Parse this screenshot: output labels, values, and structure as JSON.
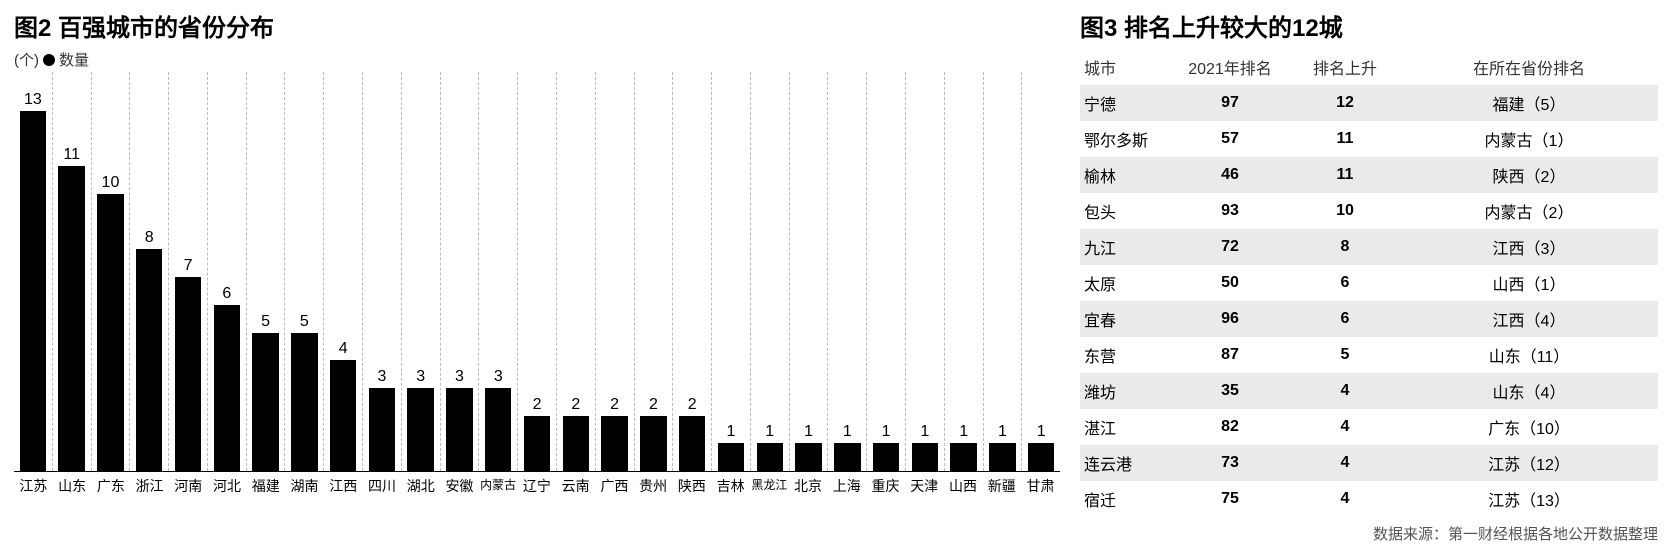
{
  "chart": {
    "title": "图2 百强城市的省份分布",
    "unit_label": "(个)",
    "legend_label": "数量",
    "type": "bar",
    "bar_color": "#000000",
    "background_color": "#ffffff",
    "grid_color": "#bbbbbb",
    "grid_style": "dashed",
    "ylim_max": 13,
    "bar_width_ratio": 0.7,
    "value_fontsize": 16,
    "xlabel_fontsize": 14,
    "categories": [
      "江苏",
      "山东",
      "广东",
      "浙江",
      "河南",
      "河北",
      "福建",
      "湖南",
      "江西",
      "四川",
      "湖北",
      "安徽",
      "内蒙古",
      "辽宁",
      "云南",
      "广西",
      "贵州",
      "陕西",
      "吉林",
      "黑龙江",
      "北京",
      "上海",
      "重庆",
      "天津",
      "山西",
      "新疆",
      "甘肃"
    ],
    "values": [
      13,
      11,
      10,
      8,
      7,
      6,
      5,
      5,
      4,
      3,
      3,
      3,
      3,
      2,
      2,
      2,
      2,
      2,
      1,
      1,
      1,
      1,
      1,
      1,
      1,
      1,
      1
    ]
  },
  "table": {
    "title": "图3 排名上升较大的12城",
    "columns": [
      "城市",
      "2021年排名",
      "排名上升",
      "在所在省份排名"
    ],
    "row_alt_bg": "#eaeaea",
    "row_bg": "#ffffff",
    "header_fontsize": 16,
    "cell_fontsize": 16,
    "rows": [
      {
        "city": "宁德",
        "rank2021": "97",
        "rise": "12",
        "prov": "福建（5）"
      },
      {
        "city": "鄂尔多斯",
        "rank2021": "57",
        "rise": "11",
        "prov": "内蒙古（1）"
      },
      {
        "city": "榆林",
        "rank2021": "46",
        "rise": "11",
        "prov": "陕西（2）"
      },
      {
        "city": "包头",
        "rank2021": "93",
        "rise": "10",
        "prov": "内蒙古（2）"
      },
      {
        "city": "九江",
        "rank2021": "72",
        "rise": "8",
        "prov": "江西（3）"
      },
      {
        "city": "太原",
        "rank2021": "50",
        "rise": "6",
        "prov": "山西（1）"
      },
      {
        "city": "宜春",
        "rank2021": "96",
        "rise": "6",
        "prov": "江西（4）"
      },
      {
        "city": "东营",
        "rank2021": "87",
        "rise": "5",
        "prov": "山东（11）"
      },
      {
        "city": "潍坊",
        "rank2021": "35",
        "rise": "4",
        "prov": "山东（4）"
      },
      {
        "city": "湛江",
        "rank2021": "82",
        "rise": "4",
        "prov": "广东（10）"
      },
      {
        "city": "连云港",
        "rank2021": "73",
        "rise": "4",
        "prov": "江苏（12）"
      },
      {
        "city": "宿迁",
        "rank2021": "75",
        "rise": "4",
        "prov": "江苏（13）"
      }
    ]
  },
  "source": "数据来源：第一财经根据各地公开数据整理"
}
